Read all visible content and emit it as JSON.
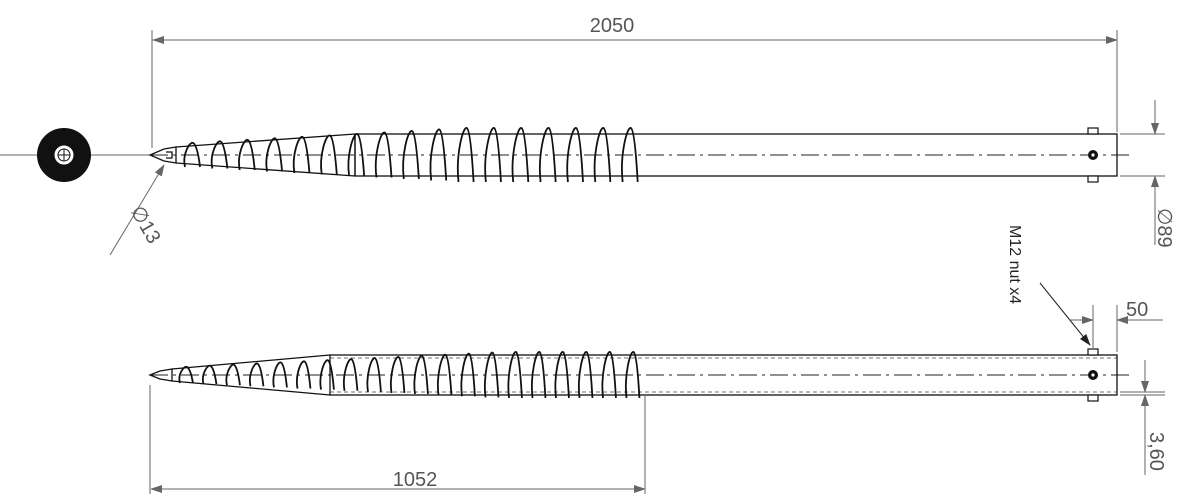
{
  "dimensions": {
    "overall_length": "2050",
    "tip_diameter": "∅13",
    "pipe_diameter": "∅89",
    "nut_offset": "50",
    "wall_thickness": "3,60",
    "helix_length": "1052"
  },
  "annotations": {
    "nut_note": "M12 nut x4"
  },
  "colors": {
    "line": "#111111",
    "dimension": "#666666",
    "text": "#555555"
  },
  "views": {
    "top": {
      "helix_turns": 17
    },
    "bottom": {
      "helix_turns": 20
    }
  }
}
